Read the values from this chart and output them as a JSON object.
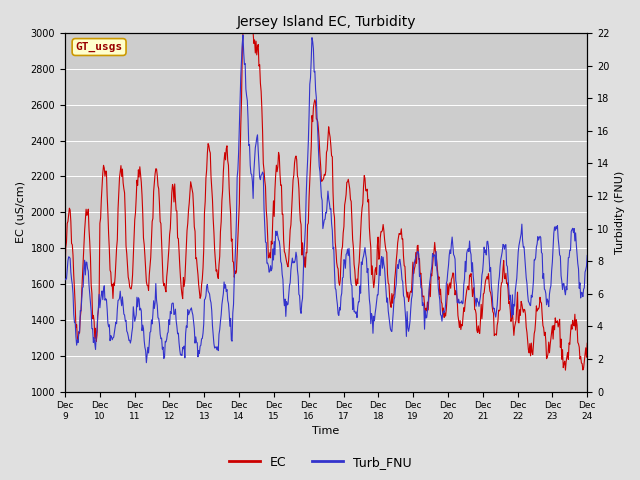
{
  "title": "Jersey Island EC, Turbidity",
  "xlabel": "Time",
  "ylabel_left": "EC (uS/cm)",
  "ylabel_right": "Turbidity (FNU)",
  "ylim_left": [
    1000,
    3000
  ],
  "ylim_right": [
    0,
    22
  ],
  "yticks_left": [
    1000,
    1200,
    1400,
    1600,
    1800,
    2000,
    2200,
    2400,
    2600,
    2800,
    3000
  ],
  "yticks_right": [
    0,
    2,
    4,
    6,
    8,
    10,
    12,
    14,
    16,
    18,
    20,
    22
  ],
  "xtick_labels": [
    "Dec 9",
    "Dec 10",
    "Dec 11",
    "Dec 12",
    "Dec 13",
    "Dec 14",
    "Dec 15",
    "Dec 16",
    "Dec 17",
    "Dec 18",
    "Dec 19",
    "Dec 20",
    "Dec 21",
    "Dec 22",
    "Dec 23",
    "Dec 24"
  ],
  "ec_color": "#cc0000",
  "turb_color": "#3333cc",
  "background_color": "#e0e0e0",
  "plot_bg_color": "#d4d4d4",
  "legend_label_ec": "EC",
  "legend_label_turb": "Turb_FNU",
  "annotation_text": "GT_usgs",
  "annotation_bg": "#ffffcc",
  "annotation_border": "#cc9900",
  "figsize": [
    6.4,
    4.8
  ],
  "dpi": 100
}
